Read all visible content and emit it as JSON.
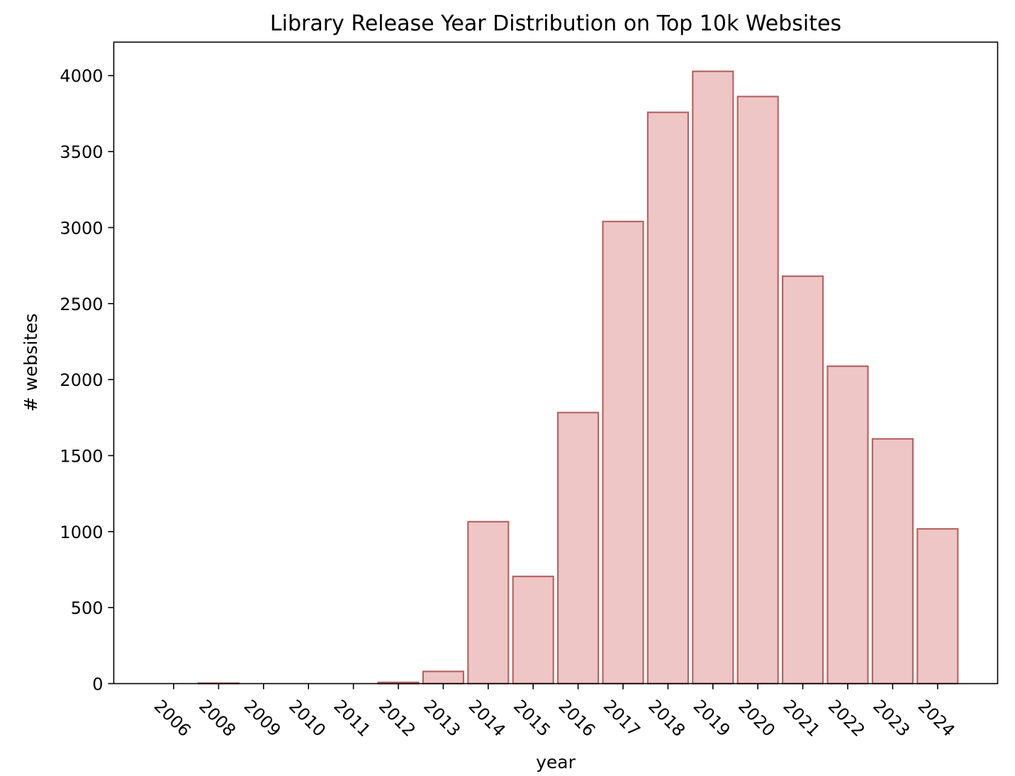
{
  "chart_data": {
    "type": "bar",
    "title": "Library Release Year Distribution on Top 10k Websites",
    "xlabel": "year",
    "ylabel": "# websites",
    "categories": [
      "2006",
      "2008",
      "2009",
      "2010",
      "2011",
      "2012",
      "2013",
      "2014",
      "2015",
      "2016",
      "2017",
      "2018",
      "2019",
      "2020",
      "2021",
      "2022",
      "2023",
      "2024"
    ],
    "values": [
      0,
      3,
      0,
      0,
      0,
      8,
      80,
      1065,
      705,
      1783,
      3040,
      3758,
      4028,
      3862,
      2680,
      2088,
      1610,
      1018
    ],
    "ylim": [
      0,
      4220
    ],
    "yticks": [
      0,
      500,
      1000,
      1500,
      2000,
      2500,
      3000,
      3500,
      4000
    ],
    "grid": false,
    "colors": {
      "bar_fill": "#eec6c6",
      "bar_edge": "#b86464",
      "axis": "#000000"
    }
  }
}
